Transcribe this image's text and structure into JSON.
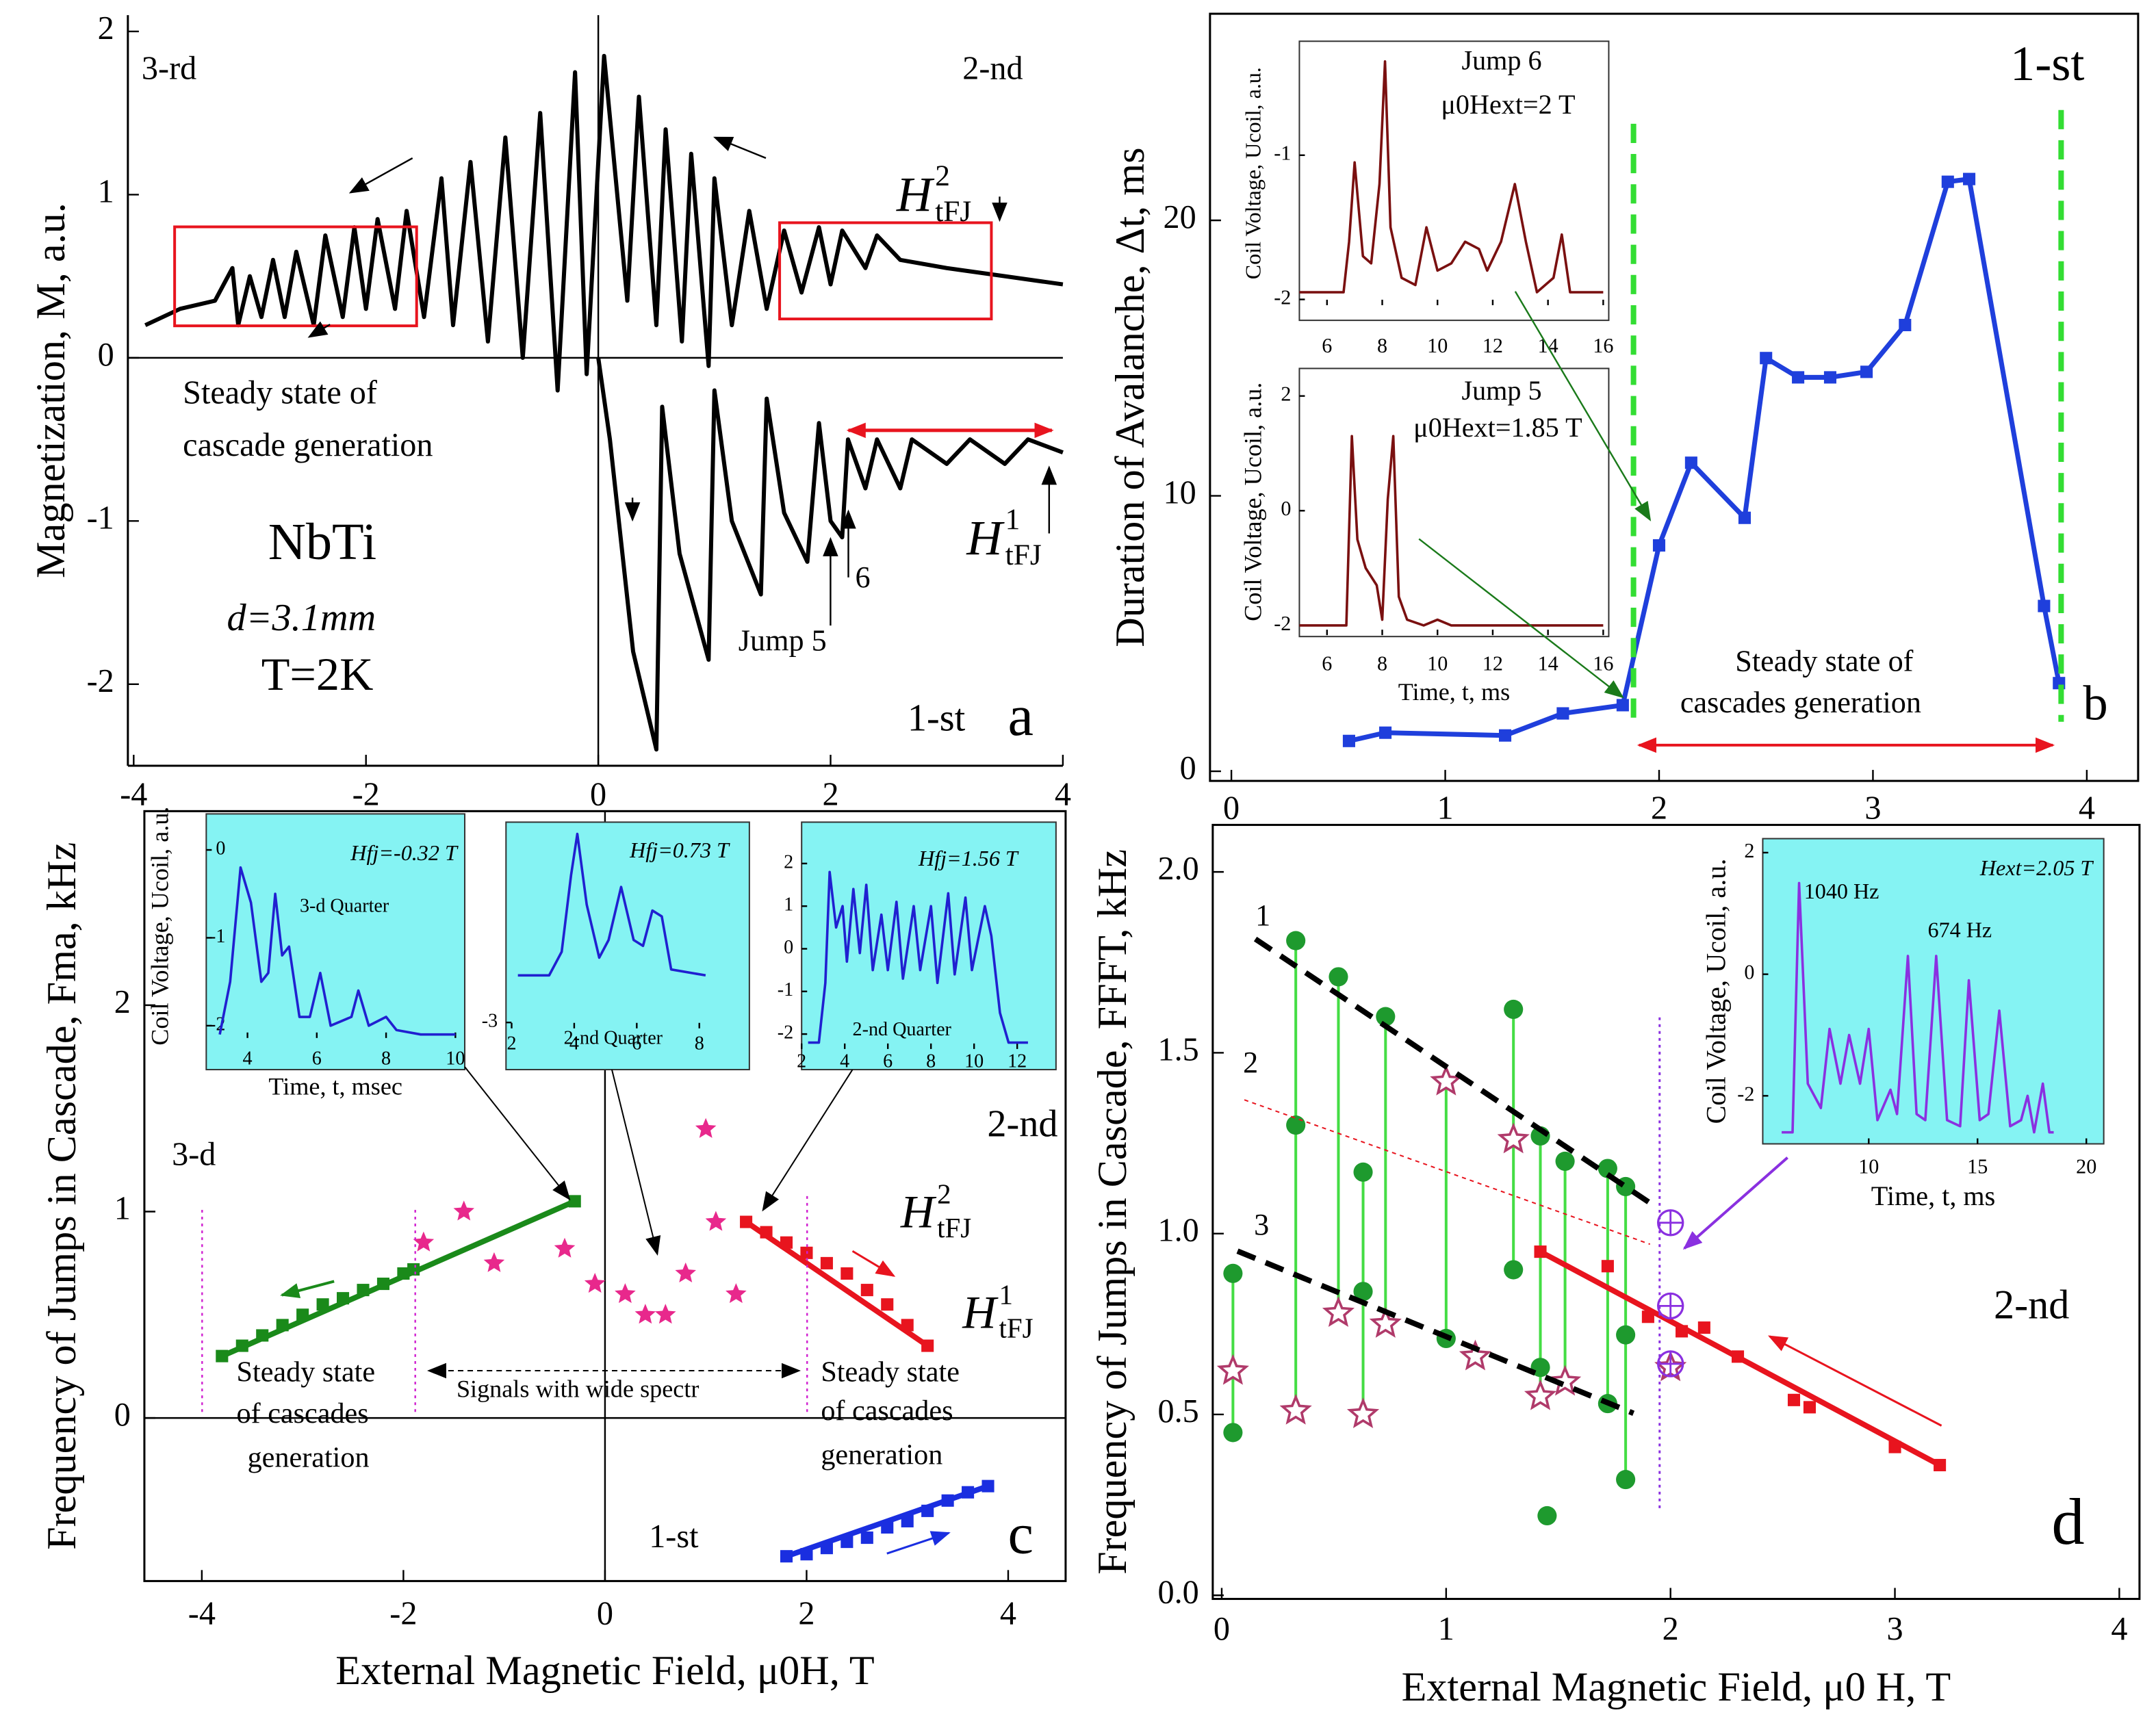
{
  "chart_data": [
    {
      "type": "line",
      "ylabel": "Magnetization, M, a.u.",
      "xlim": [
        -4.05,
        4
      ],
      "ylim": [
        -2.5,
        2.1
      ],
      "xticks": [
        -4,
        -2,
        0,
        2,
        4
      ],
      "yticks": [
        -2,
        -1,
        0,
        1,
        2
      ],
      "annotations": [
        "3-rd",
        "2-nd",
        "Steady state of",
        "cascade generation",
        "NbTi",
        "d=3.1mm",
        "T=2K",
        "1-st",
        "a",
        "Jump 5",
        "6",
        {
          "text": "H",
          "sup": "2",
          "sub": "tFJ"
        },
        {
          "text": "H",
          "sup": "1",
          "sub": "tFJ"
        }
      ],
      "series": [
        {
          "color": "#000000",
          "marker": "none",
          "line": true,
          "x": [
            4,
            3.5,
            3.0,
            2.6,
            2.4,
            2.3,
            2.1,
            2.0,
            1.9,
            1.75,
            1.6,
            1.45,
            1.3,
            1.15,
            1.0,
            0.95,
            0.8,
            0.72,
            0.58,
            0.5,
            0.35,
            0.25,
            0.05,
            -0.1,
            -0.2,
            -0.35,
            -0.5,
            -0.65,
            -0.8,
            -0.95,
            -1.1,
            -1.25,
            -1.35,
            -1.5,
            -1.65,
            -1.75,
            -1.9,
            -2.0,
            -2.1,
            -2.2,
            -2.35,
            -2.45,
            -2.6,
            -2.7,
            -2.8,
            -2.9,
            -3.0,
            -3.1,
            -3.15,
            -3.3,
            -3.6,
            -3.9
          ],
          "values": [
            0.45,
            0.5,
            0.55,
            0.6,
            0.75,
            0.55,
            0.78,
            0.45,
            0.8,
            0.4,
            0.78,
            0.3,
            0.9,
            0.2,
            1.1,
            -0.05,
            1.25,
            0.1,
            1.4,
            0.2,
            1.6,
            0.35,
            1.85,
            -0.1,
            1.75,
            -0.2,
            1.5,
            0.0,
            1.35,
            0.1,
            1.2,
            0.2,
            1.1,
            0.25,
            0.9,
            0.3,
            0.85,
            0.3,
            0.8,
            0.25,
            0.75,
            0.2,
            0.65,
            0.25,
            0.6,
            0.25,
            0.5,
            0.2,
            0.55,
            0.35,
            0.3,
            0.2
          ]
        },
        {
          "color": "#000000",
          "marker": "none",
          "line": true,
          "x": [
            0,
            0.1,
            0.3,
            0.5,
            0.55,
            0.7,
            0.95,
            1.0,
            1.15,
            1.4,
            1.45,
            1.6,
            1.8,
            1.9,
            2.0,
            2.1,
            2.15,
            2.3,
            2.4,
            2.6,
            2.7,
            3.0,
            3.2,
            3.5,
            3.7,
            4
          ],
          "values": [
            0,
            -0.5,
            -1.8,
            -2.4,
            -0.3,
            -1.2,
            -1.85,
            -0.2,
            -1.0,
            -1.45,
            -0.25,
            -0.95,
            -1.25,
            -0.4,
            -1.0,
            -1.1,
            -0.5,
            -0.8,
            -0.5,
            -0.8,
            -0.5,
            -0.65,
            -0.5,
            -0.65,
            -0.5,
            -0.58
          ]
        }
      ]
    },
    {
      "type": "line",
      "ylabel": "Duration of Avalanche, Δt, ms",
      "xlim": [
        -0.1,
        4.24
      ],
      "ylim": [
        -0.35,
        27.5
      ],
      "xticks": [
        0,
        1,
        2,
        3,
        4
      ],
      "yticks": [
        0,
        10,
        20
      ],
      "annotations": [
        "1-st",
        "b",
        "Steady state of",
        "cascades generation"
      ],
      "series": [
        {
          "color": "#1f3fdc",
          "marker": "square",
          "line": true,
          "x": [
            0.55,
            0.72,
            1.28,
            1.55,
            1.83,
            2.0,
            2.15,
            2.4,
            2.5,
            2.65,
            2.8,
            2.97,
            3.15,
            3.35,
            3.45,
            3.8,
            3.87
          ],
          "values": [
            1.1,
            1.4,
            1.3,
            2.1,
            2.4,
            8.2,
            11.2,
            9.2,
            15.0,
            14.3,
            14.3,
            14.5,
            16.2,
            21.4,
            21.5,
            6.0,
            3.2
          ]
        }
      ]
    },
    {
      "type": "scatter",
      "ylabel": "Frequency of Jumps in Cascade, Fma, kHz",
      "xlabel": "External Magnetic Field, μ0H, T",
      "xlim": [
        -4.57,
        4.57
      ],
      "ylim": [
        -0.79,
        2.94
      ],
      "xticks": [
        -4,
        -2,
        0,
        2,
        4
      ],
      "yticks": [
        0,
        1,
        2
      ],
      "annotations": [
        "3-d",
        "2-nd",
        "1-st",
        "c",
        "Steady state",
        "of  cascades",
        "generation",
        "Signals with wide spectr",
        "Steady state",
        "of cascades",
        "generation",
        {
          "text": "H",
          "sup": "2",
          "sub": "tFJ"
        },
        {
          "text": "H",
          "sup": "1",
          "sub": "tFJ"
        }
      ],
      "series": [
        {
          "color": "#1a8a1a",
          "marker": "square",
          "fit": true,
          "x": [
            -3.8,
            -3.6,
            -3.4,
            -3.2,
            -3.0,
            -2.8,
            -2.6,
            -2.4,
            -2.2,
            -2.0,
            -1.9,
            -0.3
          ],
          "values": [
            0.3,
            0.35,
            0.4,
            0.45,
            0.5,
            0.55,
            0.58,
            0.62,
            0.65,
            0.7,
            0.72,
            1.05
          ]
        },
        {
          "color": "#e8141e",
          "marker": "square",
          "fit": true,
          "x": [
            1.4,
            1.6,
            1.8,
            2.0,
            2.2,
            2.4,
            2.6,
            2.8,
            3.0,
            3.2
          ],
          "values": [
            0.95,
            0.9,
            0.85,
            0.8,
            0.75,
            0.7,
            0.62,
            0.55,
            0.45,
            0.35
          ]
        },
        {
          "color": "#1a2ee0",
          "marker": "square",
          "fit": true,
          "x": [
            1.8,
            2.0,
            2.2,
            2.4,
            2.6,
            2.8,
            3.0,
            3.2,
            3.4,
            3.6,
            3.8
          ],
          "values": [
            -0.67,
            -0.66,
            -0.63,
            -0.6,
            -0.58,
            -0.53,
            -0.5,
            -0.45,
            -0.4,
            -0.36,
            -0.33
          ]
        },
        {
          "color": "#e8288c",
          "marker": "star",
          "x": [
            -1.8,
            -1.4,
            -1.1,
            -0.4,
            -0.1,
            0.2,
            0.4,
            0.6,
            0.8,
            1.0,
            1.1,
            1.3
          ],
          "values": [
            0.85,
            1.0,
            0.75,
            0.82,
            0.65,
            0.6,
            0.5,
            0.5,
            0.7,
            1.4,
            0.95,
            0.6
          ]
        }
      ]
    },
    {
      "type": "scatter",
      "ylabel": "Frequency of Jumps in Cascade, FFFT, kHz",
      "xlabel": "External Magnetic Field, μ0 H, T",
      "xlim": [
        -0.04,
        4.09
      ],
      "ylim": [
        -0.01,
        2.13
      ],
      "xticks": [
        0,
        1,
        2,
        3,
        4
      ],
      "yticks": [
        {
          "value": 0,
          "label": "0.0"
        },
        0.5,
        {
          "value": 1,
          "label": "1.0"
        },
        1.5,
        {
          "value": 2,
          "label": "2.0"
        }
      ],
      "annotations": [
        "1",
        "2",
        "3",
        "2-nd",
        "d"
      ],
      "series": [
        {
          "color": "#1e9a2e",
          "marker": "circle",
          "stem": true,
          "x": [
            0.05,
            0.05,
            0.33,
            0.33,
            0.52,
            0.63,
            0.63,
            0.73,
            1.0,
            1.3,
            1.3,
            1.42,
            1.42,
            1.45,
            1.53,
            1.72,
            1.72,
            1.8,
            1.8,
            1.8
          ],
          "values": [
            0.89,
            0.45,
            1.81,
            1.3,
            1.71,
            1.17,
            0.84,
            1.6,
            0.71,
            1.62,
            0.9,
            1.27,
            0.63,
            0.22,
            1.2,
            1.18,
            0.53,
            1.13,
            0.32,
            0.72
          ]
        },
        {
          "color": "#b03a6a",
          "marker": "open-star",
          "stem": true,
          "x": [
            0.05,
            0.33,
            0.52,
            0.63,
            0.73,
            1.0,
            1.13,
            1.3,
            1.42,
            1.53,
            2.0
          ],
          "values": [
            0.62,
            0.51,
            0.78,
            0.5,
            0.75,
            1.42,
            0.66,
            1.26,
            0.55,
            0.59,
            0.63
          ]
        },
        {
          "color": "#e8141e",
          "marker": "square",
          "fit": true,
          "x": [
            1.42,
            1.72,
            1.9,
            2.05,
            2.15,
            2.3,
            2.55,
            2.62,
            3.0,
            3.2
          ],
          "values": [
            0.95,
            0.91,
            0.77,
            0.73,
            0.74,
            0.66,
            0.54,
            0.52,
            0.41,
            0.36
          ]
        },
        {
          "color": "#8a30e0",
          "marker": "circle-plus",
          "x": [
            2.0,
            2.0,
            2.0
          ],
          "values": [
            1.03,
            0.8,
            0.64
          ]
        }
      ]
    },
    {
      "type": "line",
      "ylabel": "Coil Voltage, Ucoil, a.u.",
      "xlim": [
        5,
        16.2
      ],
      "ylim": [
        -2.04,
        -0.21
      ],
      "xticks": [
        6,
        8,
        10,
        12,
        14,
        16
      ],
      "yticks": [
        -2,
        -1
      ],
      "annotations": [
        "Jump 6",
        "μ0Hext=2 T"
      ],
      "series": [
        {
          "color": "#7a1010",
          "marker": "none",
          "line": true,
          "x": [
            5,
            6.6,
            6.8,
            7.0,
            7.3,
            7.6,
            7.9,
            8.1,
            8.3,
            8.7,
            9.2,
            9.6,
            10.0,
            10.5,
            11,
            11.5,
            11.8,
            12.3,
            12.8,
            13.2,
            13.6,
            14.2,
            14.5,
            14.8,
            16
          ],
          "values": [
            -1.95,
            -1.95,
            -1.6,
            -1.05,
            -1.7,
            -1.75,
            -1.2,
            -0.35,
            -1.5,
            -1.85,
            -1.9,
            -1.5,
            -1.8,
            -1.75,
            -1.6,
            -1.65,
            -1.8,
            -1.6,
            -1.2,
            -1.6,
            -1.95,
            -1.85,
            -1.55,
            -1.95,
            -1.95
          ]
        }
      ]
    },
    {
      "type": "line",
      "ylabel": "Coil Voltage, Ucoil, a.u.",
      "xlabel": "Time, t, ms",
      "xlim": [
        5,
        16.2
      ],
      "ylim": [
        -2.17,
        2.48
      ],
      "xticks": [
        6,
        8,
        10,
        12,
        14,
        16
      ],
      "yticks": [
        -2,
        0,
        2
      ],
      "annotations": [
        "Jump 5",
        "μ0Hext=1.85 T"
      ],
      "series": [
        {
          "color": "#7a1010",
          "marker": "none",
          "line": true,
          "x": [
            5,
            6.7,
            6.9,
            7.1,
            7.4,
            7.8,
            8.0,
            8.2,
            8.4,
            8.6,
            8.9,
            9.5,
            10,
            10.5,
            16
          ],
          "values": [
            -2,
            -2,
            1.3,
            -0.5,
            -1.0,
            -1.3,
            -1.9,
            0.2,
            1.3,
            -1.5,
            -1.9,
            -2,
            -1.9,
            -2,
            -2
          ]
        }
      ]
    },
    {
      "type": "line",
      "ylabel": "Coil Voltage, Ucoil, a.u.",
      "xlabel": "Time, t, msec",
      "xlim": [
        2.81,
        10.27
      ],
      "ylim": [
        -2.14,
        0.41
      ],
      "xticks": [
        4,
        6,
        8,
        10
      ],
      "yticks": [
        -2,
        -1,
        0
      ],
      "annotations": [
        "Hfj=-0.32 T",
        "3-d Quarter"
      ],
      "series": [
        {
          "color": "#2020d0",
          "marker": "none",
          "line": true,
          "x": [
            3.2,
            3.5,
            3.8,
            4.1,
            4.4,
            4.6,
            4.8,
            5.0,
            5.2,
            5.5,
            5.8,
            6.1,
            6.4,
            7.0,
            7.2,
            7.5,
            8.0,
            8.3,
            9,
            10
          ],
          "values": [
            -2.1,
            -1.5,
            -0.2,
            -0.6,
            -1.5,
            -1.4,
            -0.5,
            -1.2,
            -1.1,
            -1.9,
            -1.9,
            -1.4,
            -2.0,
            -1.9,
            -1.6,
            -2.0,
            -1.9,
            -2.05,
            -2.1,
            -2.1
          ]
        }
      ]
    },
    {
      "type": "line",
      "xlim": [
        1.82,
        9.6
      ],
      "ylim": [
        -3.1,
        0.4
      ],
      "xticks": [
        2,
        4,
        6,
        8
      ],
      "yticks": [
        -3
      ],
      "annotations": [
        "Hfj=0.73 T",
        "2-nd Quarter"
      ],
      "series": [
        {
          "color": "#2020d0",
          "marker": "none",
          "line": true,
          "x": [
            2.2,
            3.2,
            3.6,
            3.9,
            4.1,
            4.4,
            4.8,
            5.1,
            5.5,
            5.9,
            6.2,
            6.5,
            6.8,
            7.1,
            8.2
          ],
          "values": [
            -2.2,
            -2.2,
            -1.8,
            -0.5,
            0.2,
            -1.0,
            -1.9,
            -1.6,
            -0.7,
            -1.6,
            -1.7,
            -1.1,
            -1.2,
            -2.1,
            -2.2
          ]
        }
      ]
    },
    {
      "type": "line",
      "xlim": [
        2,
        13.8
      ],
      "ylim": [
        -2.35,
        2.97
      ],
      "xticks": [
        2,
        4,
        6,
        8,
        10,
        12
      ],
      "yticks": [
        -2,
        -1,
        0,
        1,
        2
      ],
      "annotations": [
        "Hfj=1.56 T",
        "2-nd Quarter"
      ],
      "series": [
        {
          "color": "#2020d0",
          "marker": "none",
          "line": true,
          "x": [
            2.3,
            2.8,
            3.1,
            3.3,
            3.6,
            3.9,
            4.1,
            4.4,
            4.7,
            5.0,
            5.3,
            5.7,
            6.0,
            6.4,
            6.7,
            7.2,
            7.5,
            8.0,
            8.3,
            8.8,
            9.1,
            9.6,
            9.9,
            10.5,
            10.8,
            11.2,
            11.6,
            12.5
          ],
          "values": [
            -2.2,
            -2.2,
            -0.8,
            1.8,
            0.5,
            1.0,
            -0.3,
            1.4,
            -0.1,
            1.5,
            -0.5,
            0.8,
            -0.5,
            1.1,
            -0.7,
            1.0,
            -0.5,
            1.0,
            -0.8,
            1.3,
            -0.6,
            1.2,
            -0.5,
            1.0,
            0.3,
            -1.5,
            -2.2,
            -2.2
          ]
        }
      ]
    },
    {
      "type": "line",
      "ylabel": "Coil Voltage, Ucoil, a.u.",
      "xlabel": "Time, t, ms",
      "xlim": [
        5.13,
        20.8
      ],
      "ylim": [
        -2.79,
        2.23
      ],
      "xticks": [
        10,
        15,
        20
      ],
      "yticks": [
        -2,
        0,
        2
      ],
      "annotations": [
        "1040 Hz",
        "674 Hz",
        "Hext=2.05 T"
      ],
      "series": [
        {
          "color": "#8a30e0",
          "marker": "none",
          "line": true,
          "x": [
            6.0,
            6.5,
            6.8,
            7.2,
            7.8,
            8.2,
            8.7,
            9.1,
            9.6,
            10.0,
            10.4,
            11.0,
            11.3,
            11.8,
            12.2,
            12.6,
            13.1,
            13.6,
            14.2,
            14.6,
            15.1,
            15.5,
            16.0,
            16.5,
            17.0,
            17.3,
            17.6,
            18.0,
            18.3,
            18.5
          ],
          "values": [
            -2.6,
            -2.6,
            1.5,
            -1.8,
            -2.2,
            -0.9,
            -1.8,
            -1.0,
            -1.8,
            -0.9,
            -2.4,
            -1.9,
            -2.3,
            0.3,
            -2.3,
            -2.4,
            0.3,
            -2.4,
            -2.5,
            -0.1,
            -2.4,
            -2.3,
            -0.6,
            -2.5,
            -2.4,
            -2.0,
            -2.6,
            -1.8,
            -2.6,
            -2.6
          ]
        }
      ]
    }
  ]
}
